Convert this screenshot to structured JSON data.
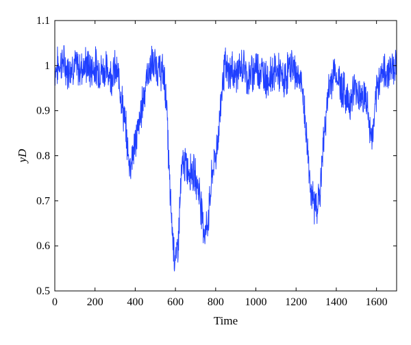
{
  "chart_data": {
    "type": "line",
    "title": "",
    "xlabel": "Time",
    "ylabel": "yD",
    "xlim": [
      0,
      1700
    ],
    "ylim": [
      0.5,
      1.1
    ],
    "xticks": [
      0,
      200,
      400,
      600,
      800,
      1000,
      1200,
      1400,
      1600
    ],
    "yticks": [
      0.5,
      0.6,
      0.7,
      0.8,
      0.9,
      1,
      1.1
    ],
    "xtick_labels": [
      "0",
      "200",
      "400",
      "600",
      "800",
      "1000",
      "1200",
      "1400",
      "1600"
    ],
    "ytick_labels": [
      "0.5",
      "0.6",
      "0.7",
      "0.8",
      "0.9",
      "1",
      "1.1"
    ],
    "grid": false,
    "legend": "none",
    "series": [
      {
        "color": "#1f3fff",
        "x": [
          0,
          20,
          40,
          60,
          80,
          100,
          120,
          140,
          160,
          180,
          200,
          220,
          240,
          260,
          280,
          300,
          320,
          340,
          355,
          365,
          375,
          385,
          400,
          420,
          440,
          460,
          480,
          500,
          520,
          540,
          555,
          565,
          575,
          585,
          595,
          605,
          615,
          625,
          635,
          645,
          660,
          680,
          700,
          720,
          735,
          745,
          755,
          765,
          775,
          785,
          800,
          815,
          830,
          845,
          860,
          880,
          900,
          920,
          940,
          960,
          980,
          1000,
          1020,
          1040,
          1060,
          1080,
          1100,
          1120,
          1140,
          1160,
          1180,
          1200,
          1220,
          1235,
          1250,
          1265,
          1280,
          1295,
          1310,
          1320,
          1335,
          1350,
          1370,
          1390,
          1410,
          1430,
          1450,
          1470,
          1490,
          1510,
          1530,
          1545,
          1555,
          1565,
          1575,
          1585,
          1600,
          1620,
          1640,
          1660,
          1680,
          1700
        ],
        "y": [
          0.99,
          1.0,
          1.01,
          0.99,
          1.0,
          1.0,
          0.99,
          1.0,
          1.0,
          0.99,
          1.0,
          0.99,
          0.99,
          0.99,
          0.98,
          0.99,
          0.97,
          0.9,
          0.85,
          0.8,
          0.78,
          0.8,
          0.83,
          0.87,
          0.93,
          0.98,
          1.0,
          1.0,
          0.99,
          0.98,
          0.93,
          0.8,
          0.7,
          0.63,
          0.58,
          0.57,
          0.62,
          0.72,
          0.78,
          0.78,
          0.77,
          0.77,
          0.75,
          0.72,
          0.66,
          0.63,
          0.64,
          0.67,
          0.72,
          0.77,
          0.8,
          0.85,
          0.95,
          1.0,
          0.98,
          0.99,
          0.98,
          0.99,
          1.0,
          0.97,
          0.98,
          1.0,
          0.99,
          0.98,
          0.97,
          0.98,
          0.99,
          0.98,
          0.96,
          0.99,
          1.0,
          0.98,
          0.97,
          0.93,
          0.85,
          0.77,
          0.7,
          0.69,
          0.7,
          0.72,
          0.82,
          0.9,
          0.96,
          0.99,
          0.97,
          0.95,
          0.93,
          0.92,
          0.95,
          0.94,
          0.93,
          0.93,
          0.91,
          0.86,
          0.84,
          0.86,
          0.93,
          0.99,
          0.98,
          0.99,
          1.0,
          1.0
        ]
      }
    ]
  }
}
